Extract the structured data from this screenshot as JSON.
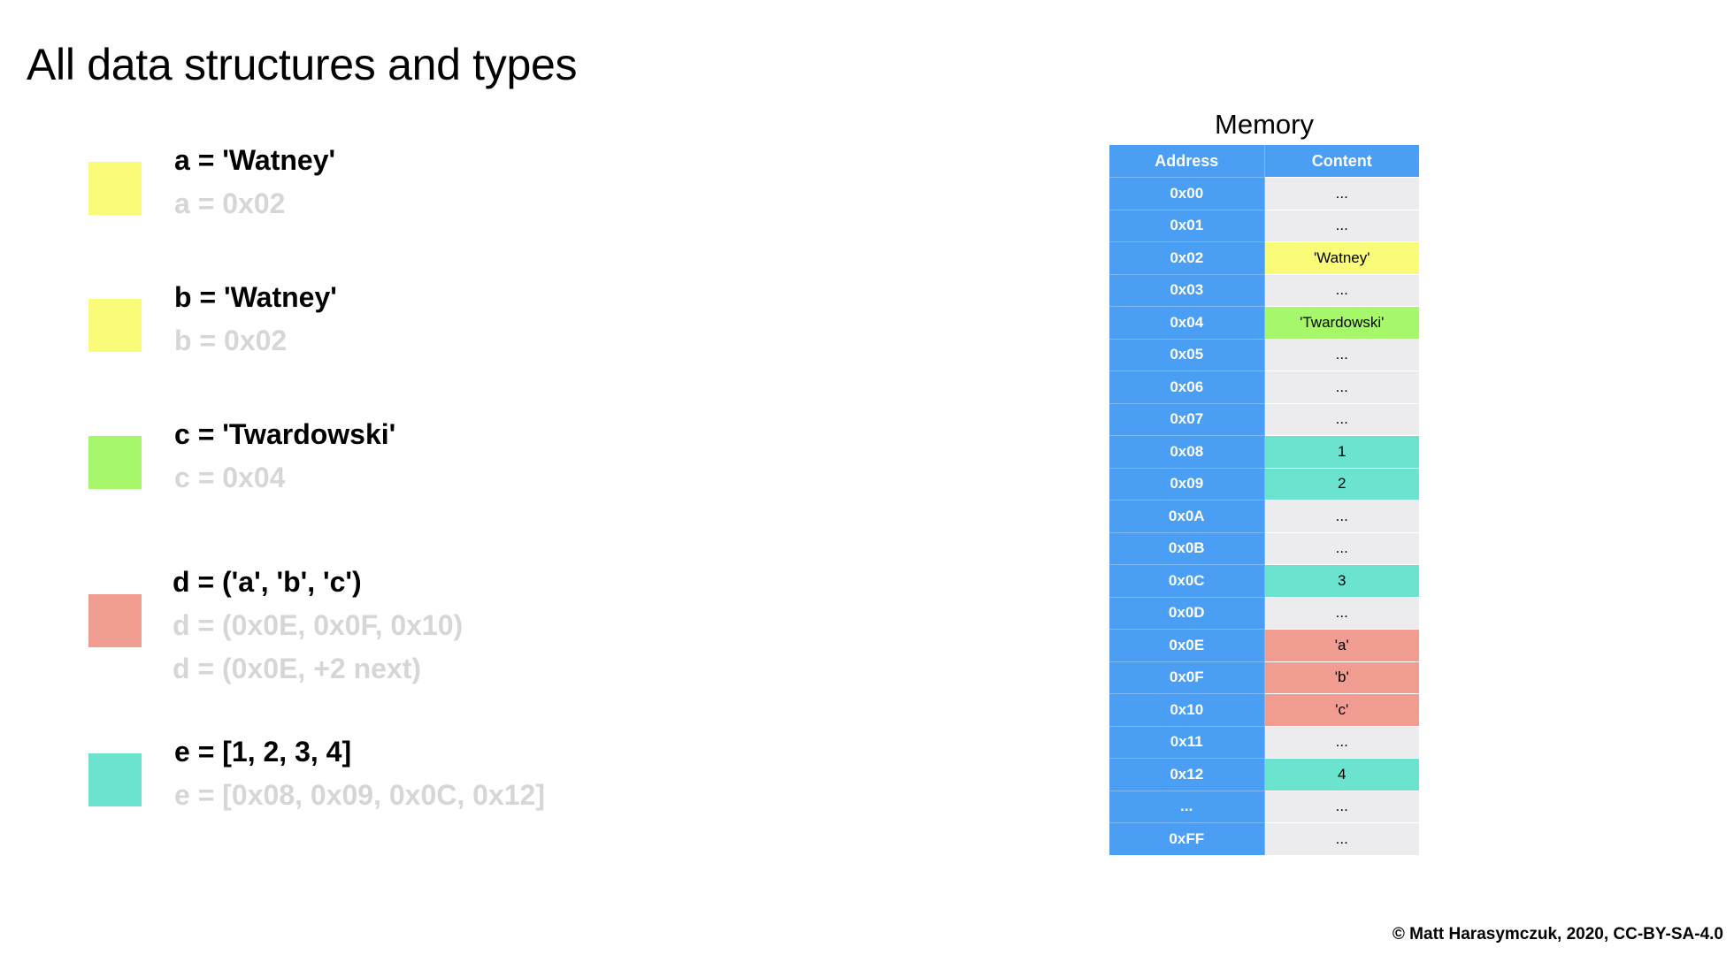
{
  "title": "All data structures and types",
  "colors": {
    "yellow": "#fbfb7a",
    "green": "#a6f76a",
    "red": "#f19c90",
    "teal": "#6ce3cf",
    "blue": "#4a9ff5",
    "empty": "#ececee",
    "faded_text": "#d6d6d6"
  },
  "variables": [
    {
      "color": "#fbfb7a",
      "lines": [
        "a = 'Watney'",
        "a = 0x02"
      ]
    },
    {
      "color": "#fbfb7a",
      "lines": [
        "b = 'Watney'",
        "b = 0x02"
      ]
    },
    {
      "color": "#a6f76a",
      "lines": [
        "c = 'Twardowski'",
        "c = 0x04"
      ]
    },
    {
      "color": "#f19c90",
      "lines": [
        "d = ('a', 'b', 'c')",
        "d = (0x0E, 0x0F, 0x10)",
        "d = (0x0E, +2 next)"
      ]
    },
    {
      "color": "#6ce3cf",
      "lines": [
        "e = [1, 2, 3, 4]",
        "e = [0x08, 0x09, 0x0C, 0x12]"
      ]
    }
  ],
  "memory": {
    "title": "Memory",
    "headers": [
      "Address",
      "Content"
    ],
    "rows": [
      {
        "address": "0x00",
        "content": "...",
        "color": "#ececee"
      },
      {
        "address": "0x01",
        "content": "...",
        "color": "#ececee"
      },
      {
        "address": "0x02",
        "content": "'Watney'",
        "color": "#fbfb7a"
      },
      {
        "address": "0x03",
        "content": "...",
        "color": "#ececee"
      },
      {
        "address": "0x04",
        "content": "'Twardowski'",
        "color": "#a6f76a"
      },
      {
        "address": "0x05",
        "content": "...",
        "color": "#ececee"
      },
      {
        "address": "0x06",
        "content": "...",
        "color": "#ececee"
      },
      {
        "address": "0x07",
        "content": "...",
        "color": "#ececee"
      },
      {
        "address": "0x08",
        "content": "1",
        "color": "#6ce3cf"
      },
      {
        "address": "0x09",
        "content": "2",
        "color": "#6ce3cf"
      },
      {
        "address": "0x0A",
        "content": "...",
        "color": "#ececee"
      },
      {
        "address": "0x0B",
        "content": "...",
        "color": "#ececee"
      },
      {
        "address": "0x0C",
        "content": "3",
        "color": "#6ce3cf"
      },
      {
        "address": "0x0D",
        "content": "...",
        "color": "#ececee"
      },
      {
        "address": "0x0E",
        "content": "'a'",
        "color": "#f19c90"
      },
      {
        "address": "0x0F",
        "content": "'b'",
        "color": "#f19c90"
      },
      {
        "address": "0x10",
        "content": "'c'",
        "color": "#f19c90"
      },
      {
        "address": "0x11",
        "content": "...",
        "color": "#ececee"
      },
      {
        "address": "0x12",
        "content": "4",
        "color": "#6ce3cf"
      },
      {
        "address": "...",
        "content": "...",
        "color": "#ececee"
      },
      {
        "address": "0xFF",
        "content": "...",
        "color": "#ececee"
      }
    ]
  },
  "copyright": "© Matt Harasymczuk, 2020, CC-BY-SA-4.0"
}
